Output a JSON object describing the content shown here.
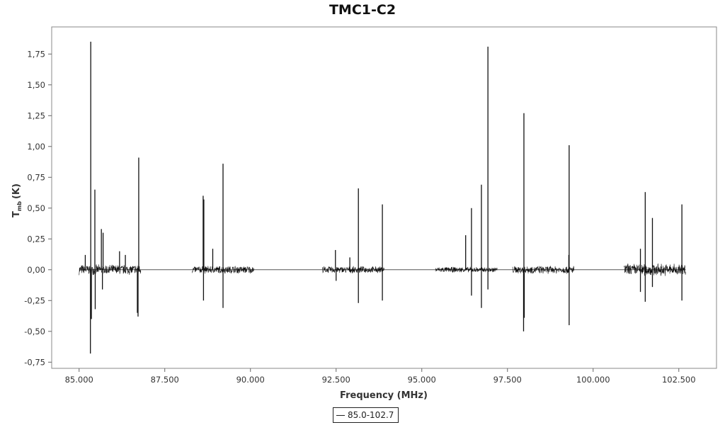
{
  "chart_data": {
    "type": "line",
    "title": "TMC1-C2",
    "xlabel": "Frequency (MHz)",
    "ylabel_main": "T",
    "ylabel_sub": "mb",
    "ylabel_unit": "(K)",
    "xlim": [
      84200,
      103600
    ],
    "ylim": [
      -0.8,
      1.97
    ],
    "x_ticks": [
      85000,
      87500,
      90000,
      92500,
      95000,
      97500,
      100000,
      102500
    ],
    "x_tick_labels": [
      "85.000",
      "87.500",
      "90.000",
      "92.500",
      "95.000",
      "97.500",
      "100.000",
      "102.500"
    ],
    "y_ticks": [
      -0.75,
      -0.5,
      -0.25,
      0,
      0.25,
      0.5,
      0.75,
      1,
      1.25,
      1.5,
      1.75
    ],
    "y_tick_labels": [
      "-0,75",
      "-0,50",
      "-0,25",
      "0,00",
      "0,25",
      "0,50",
      "0,75",
      "1,00",
      "1,25",
      "1,50",
      "1,75"
    ],
    "legend_position": "bottom-center",
    "grid": false,
    "line_color": "#111111",
    "series": [
      {
        "name": "85.0-102.7",
        "baseline": 0,
        "segments": [
          {
            "x_start": 85000,
            "x_end": 86800,
            "noise": 0.045
          },
          {
            "x_start": 88300,
            "x_end": 90100,
            "noise": 0.035
          },
          {
            "x_start": 92100,
            "x_end": 93900,
            "noise": 0.03
          },
          {
            "x_start": 95400,
            "x_end": 97200,
            "noise": 0.025
          },
          {
            "x_start": 97650,
            "x_end": 99450,
            "noise": 0.035
          },
          {
            "x_start": 100900,
            "x_end": 102700,
            "noise": 0.055
          }
        ],
        "lines": [
          {
            "x": 85180,
            "y": 0.12
          },
          {
            "x": 85340,
            "y": 1.85
          },
          {
            "x": 85330,
            "y": -0.68
          },
          {
            "x": 85360,
            "y": -0.4
          },
          {
            "x": 85460,
            "y": 0.65
          },
          {
            "x": 85470,
            "y": -0.32
          },
          {
            "x": 85650,
            "y": 0.33
          },
          {
            "x": 85700,
            "y": 0.3
          },
          {
            "x": 85680,
            "y": -0.16
          },
          {
            "x": 86180,
            "y": 0.15
          },
          {
            "x": 86350,
            "y": 0.12
          },
          {
            "x": 86740,
            "y": 0.91
          },
          {
            "x": 86720,
            "y": -0.38
          },
          {
            "x": 86700,
            "y": -0.35
          },
          {
            "x": 88620,
            "y": 0.6
          },
          {
            "x": 88640,
            "y": 0.57
          },
          {
            "x": 88630,
            "y": -0.25
          },
          {
            "x": 88900,
            "y": 0.17
          },
          {
            "x": 89200,
            "y": 0.86
          },
          {
            "x": 89200,
            "y": -0.31
          },
          {
            "x": 92480,
            "y": 0.16
          },
          {
            "x": 92500,
            "y": -0.09
          },
          {
            "x": 92900,
            "y": 0.1
          },
          {
            "x": 93150,
            "y": 0.66
          },
          {
            "x": 93150,
            "y": -0.27
          },
          {
            "x": 93850,
            "y": 0.53
          },
          {
            "x": 93850,
            "y": -0.25
          },
          {
            "x": 96280,
            "y": 0.28
          },
          {
            "x": 96450,
            "y": 0.5
          },
          {
            "x": 96450,
            "y": -0.21
          },
          {
            "x": 96740,
            "y": 0.69
          },
          {
            "x": 96740,
            "y": -0.31
          },
          {
            "x": 96930,
            "y": 1.81
          },
          {
            "x": 96930,
            "y": -0.16
          },
          {
            "x": 97980,
            "y": 1.27
          },
          {
            "x": 97970,
            "y": -0.5
          },
          {
            "x": 97990,
            "y": -0.39
          },
          {
            "x": 99300,
            "y": 1.01
          },
          {
            "x": 99300,
            "y": -0.45
          },
          {
            "x": 99290,
            "y": 0.12
          },
          {
            "x": 101380,
            "y": 0.17
          },
          {
            "x": 101380,
            "y": -0.18
          },
          {
            "x": 101520,
            "y": 0.63
          },
          {
            "x": 101520,
            "y": -0.26
          },
          {
            "x": 101730,
            "y": 0.42
          },
          {
            "x": 101730,
            "y": -0.14
          },
          {
            "x": 102590,
            "y": 0.53
          },
          {
            "x": 102590,
            "y": -0.25
          }
        ]
      }
    ]
  }
}
